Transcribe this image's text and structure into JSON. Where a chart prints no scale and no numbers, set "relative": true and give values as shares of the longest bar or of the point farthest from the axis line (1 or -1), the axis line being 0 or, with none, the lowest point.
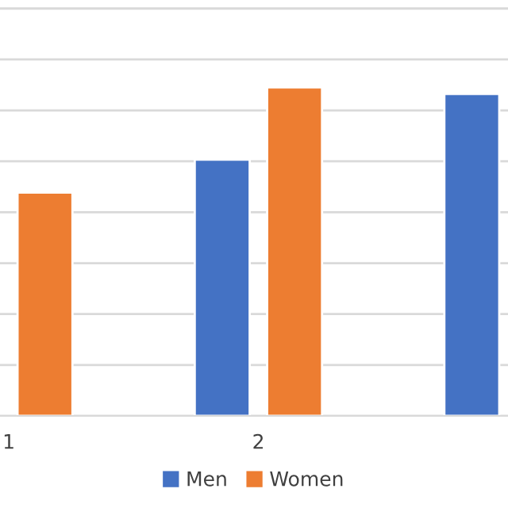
{
  "chart_data": {
    "type": "bar",
    "relative": true,
    "categories": [
      "1",
      "2",
      null
    ],
    "series": [
      {
        "name": "Men",
        "color": "#4472c4",
        "values": [
          null,
          0.78,
          0.98
        ]
      },
      {
        "name": "Women",
        "color": "#ed7d31",
        "values": [
          0.68,
          1,
          null
        ]
      }
    ],
    "grid": "y",
    "legend": "bottom"
  }
}
